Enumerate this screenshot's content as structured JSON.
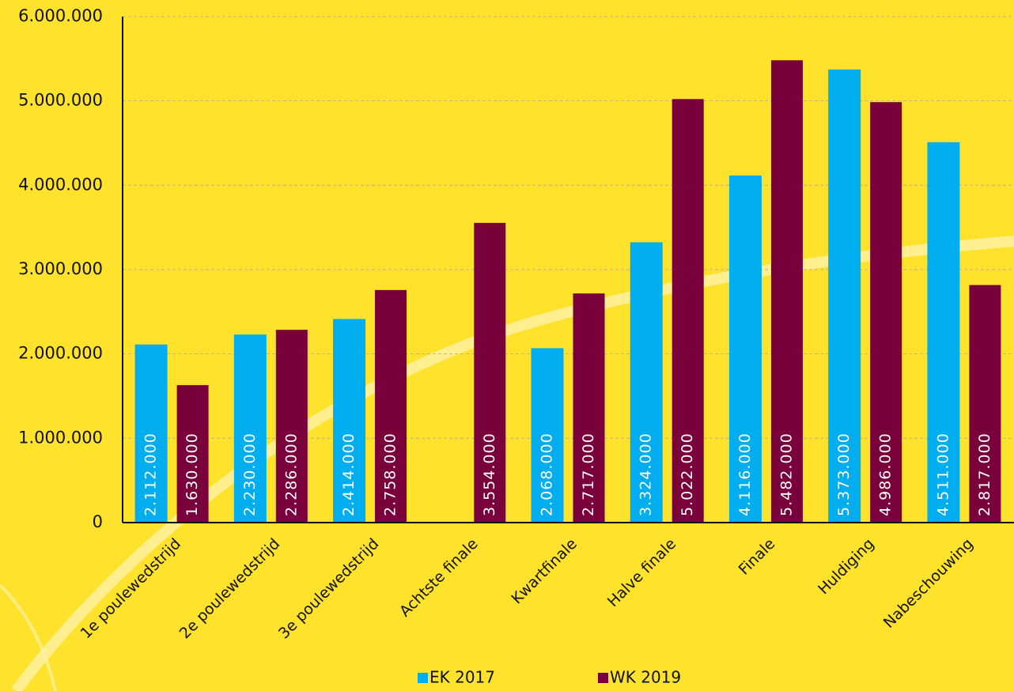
{
  "chart_data": {
    "type": "bar",
    "categories": [
      "1e poulewedstrijd",
      "2e poulewedstrijd",
      "3e poulewedstrijd",
      "Achtste finale",
      "Kwartfinale",
      "Halve finale",
      "Finale",
      "Huldiging",
      "Nabeschouwing"
    ],
    "series": [
      {
        "name": "EK 2017",
        "color": "#00aeef",
        "values": [
          2112000,
          2230000,
          2414000,
          null,
          2068000,
          3324000,
          4116000,
          5373000,
          4511000
        ],
        "value_labels": [
          "2.112.000",
          "2.230.000",
          "2.414.000",
          null,
          "2.068.000",
          "3.324.000",
          "4.116.000",
          "5.373.000",
          "4.511.000"
        ]
      },
      {
        "name": "WK 2019",
        "color": "#7a003c",
        "values": [
          1630000,
          2286000,
          2758000,
          3554000,
          2717000,
          5022000,
          5482000,
          4986000,
          2817000
        ],
        "value_labels": [
          "1.630.000",
          "2.286.000",
          "2.758.000",
          "3.554.000",
          "2.717.000",
          "5.022.000",
          "5.482.000",
          "4.986.000",
          "2.817.000"
        ]
      }
    ],
    "ylim": [
      0,
      6000000
    ],
    "yticks": [
      0,
      {
        "value": 1000000,
        "label": "1.000.000"
      },
      {
        "value": 2000000,
        "label": "2.000.000"
      },
      {
        "value": 3000000,
        "label": "3.000.000"
      },
      {
        "value": 4000000,
        "label": "4.000.000"
      },
      {
        "value": 5000000,
        "label": "5.000.000"
      },
      {
        "value": 6000000,
        "label": "6.000.000"
      }
    ],
    "grid": true,
    "legend": "bottom"
  }
}
